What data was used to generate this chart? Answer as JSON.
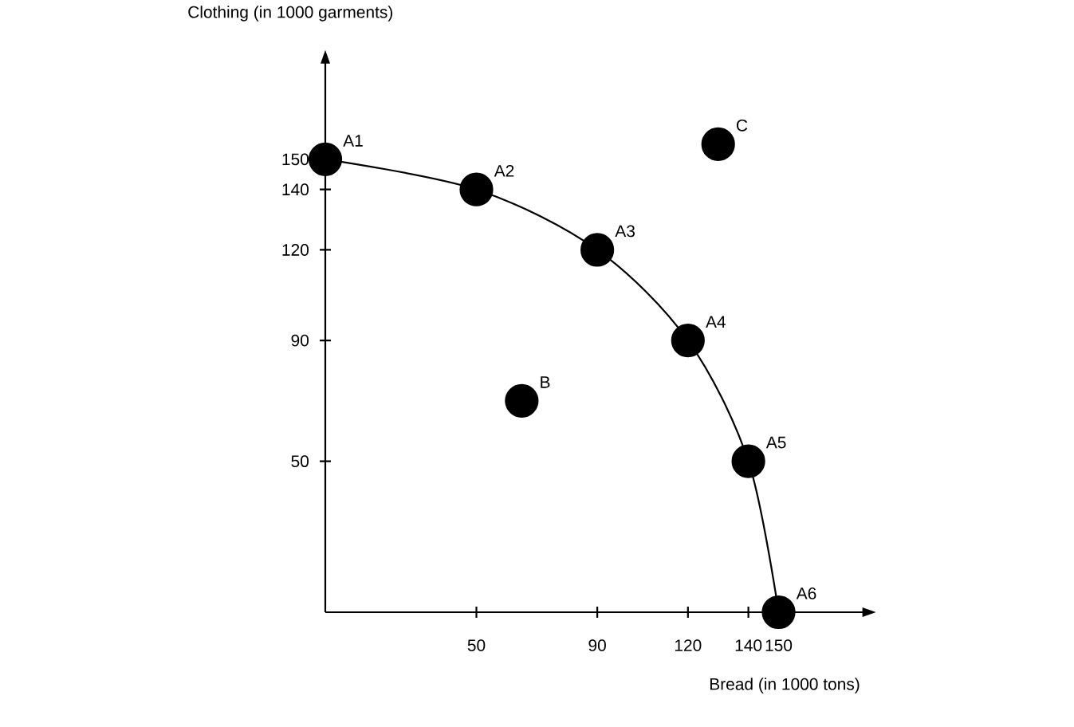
{
  "chart_data": {
    "type": "scatter",
    "xlabel": "Bread (in 1000 tons)",
    "ylabel": "Clothing (in 1000 garments)",
    "series": [
      {
        "type": "line",
        "color": "#000000",
        "x": [
          0,
          50,
          90,
          120,
          140,
          150
        ],
        "values": [
          150,
          140,
          120,
          90,
          50,
          0
        ]
      },
      {
        "type": "scatter",
        "color": "#000000",
        "x": [
          65,
          130
        ],
        "values": [
          70,
          155
        ]
      }
    ],
    "marker": "circle",
    "line_style": "solid",
    "xlim": [
      0,
      178
    ],
    "ylim": [
      0,
      182
    ],
    "xticks": [
      50,
      90,
      120,
      140,
      150
    ],
    "yticks": [
      50,
      90,
      120,
      140,
      150
    ],
    "annotations": [
      {
        "text": "A1",
        "x": 0,
        "y": 150
      },
      {
        "text": "A2",
        "x": 50,
        "y": 140
      },
      {
        "text": "A3",
        "x": 90,
        "y": 120
      },
      {
        "text": "A4",
        "x": 120,
        "y": 90
      },
      {
        "text": "A5",
        "x": 140,
        "y": 50
      },
      {
        "text": "A6",
        "x": 150,
        "y": 0
      },
      {
        "text": "B",
        "x": 65,
        "y": 70
      },
      {
        "text": "C",
        "x": 130,
        "y": 155
      }
    ]
  }
}
